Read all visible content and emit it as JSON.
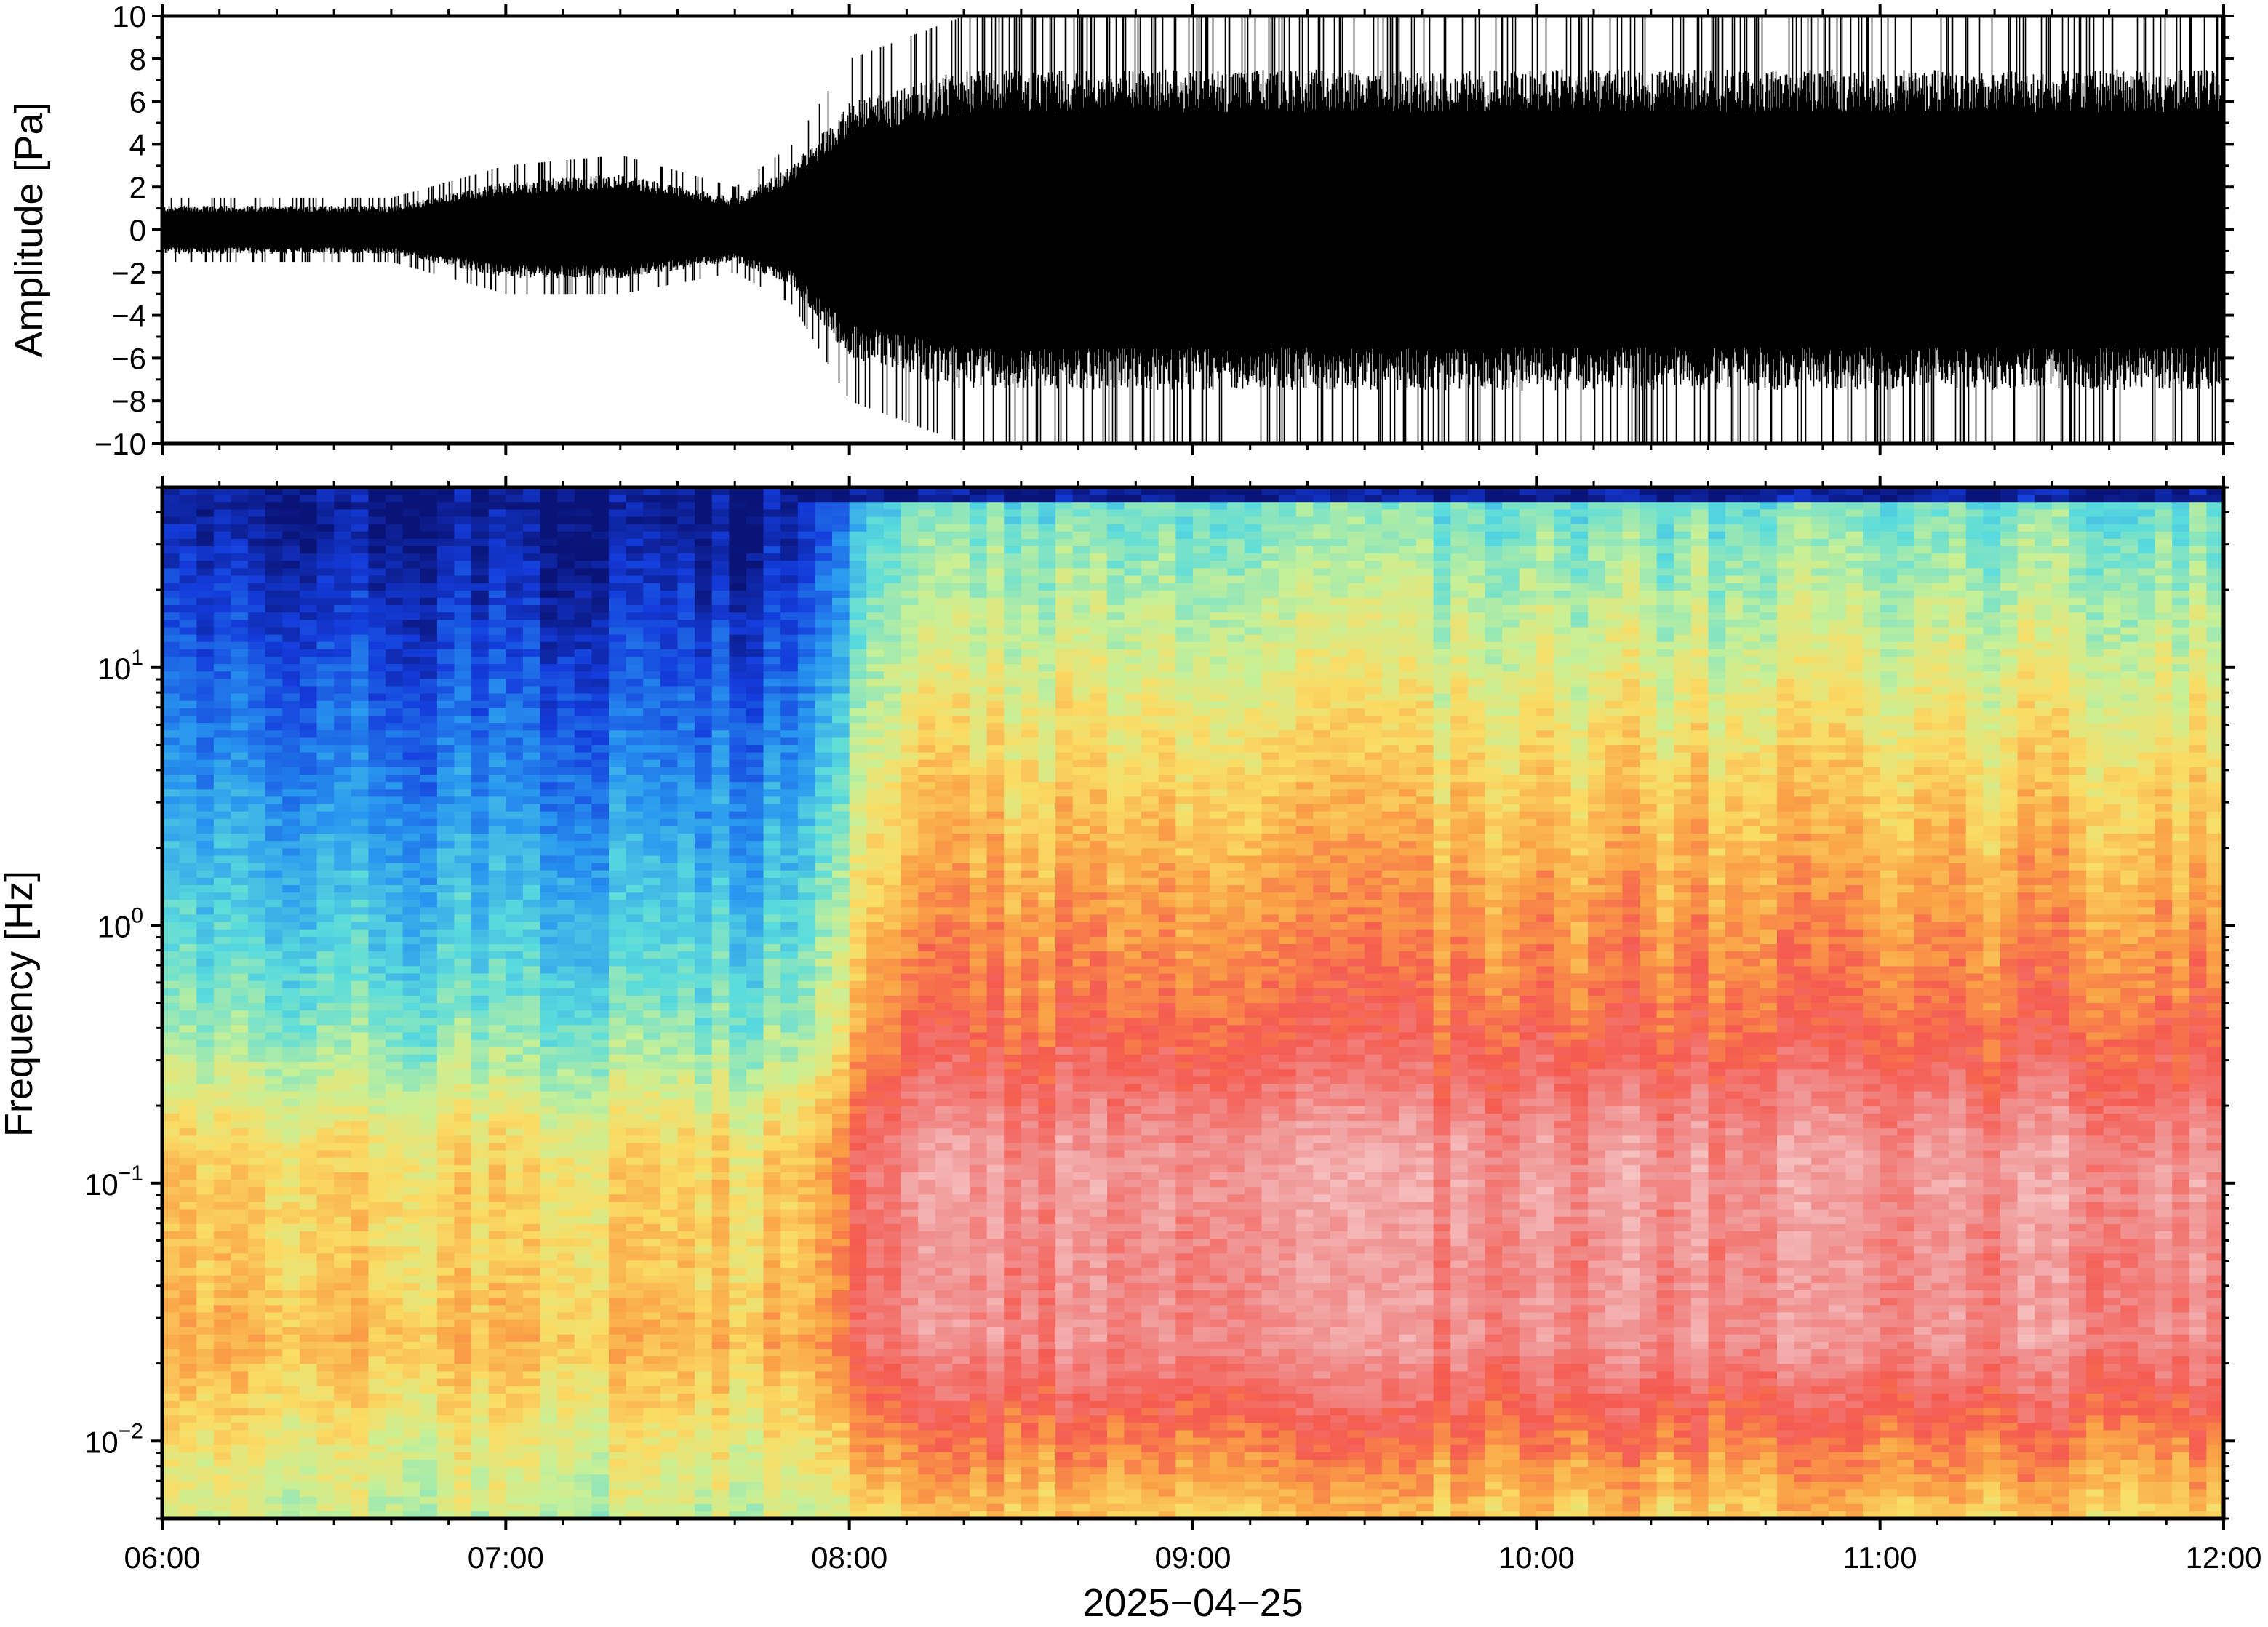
{
  "chart_data": [
    {
      "type": "line",
      "title": "",
      "xlabel": "",
      "ylabel": "Amplitude [Pa]",
      "xlim": [
        "06:00",
        "12:00"
      ],
      "ylim": [
        -10,
        10
      ],
      "ytick_values": [
        -10,
        -8,
        -6,
        -4,
        -2,
        0,
        2,
        4,
        6,
        8,
        10
      ],
      "ytick_labels": [
        "−10",
        "−8",
        "−6",
        "−4",
        "−2",
        "0",
        "2",
        "4",
        "6",
        "8",
        "10"
      ],
      "grid": false,
      "legend": "none",
      "color": "#000000",
      "series": [
        {
          "x": [
            "06:00",
            "06:20",
            "06:40",
            "07:00",
            "07:20",
            "07:40",
            "07:50",
            "08:00",
            "08:20",
            "08:40",
            "09:00",
            "09:20",
            "09:40",
            "10:00",
            "10:20",
            "10:40",
            "11:00",
            "11:20",
            "11:40",
            "12:00"
          ],
          "envelope_max": [
            1.5,
            1.5,
            1.5,
            3.0,
            3.5,
            2.0,
            4.0,
            8.0,
            10,
            10,
            10,
            10,
            10,
            10,
            10,
            10,
            10,
            10,
            10,
            10
          ],
          "envelope_min": [
            -1.5,
            -1.5,
            -1.5,
            -3.0,
            -3.0,
            -2.0,
            -3.5,
            -8.0,
            -10,
            -10,
            -10,
            -10,
            -10,
            -10,
            -10,
            -10,
            -10,
            -10,
            -10,
            -10
          ]
        }
      ]
    },
    {
      "type": "heatmap",
      "title": "",
      "xlabel": "2025−04−25",
      "ylabel": "Frequency [Hz]",
      "xlim": [
        "06:00",
        "12:00"
      ],
      "xtick_labels": [
        "06:00",
        "07:00",
        "08:00",
        "09:00",
        "10:00",
        "11:00",
        "12:00"
      ],
      "ylim": [
        0.005,
        50
      ],
      "yscale": "log",
      "ytick_values": [
        0.01,
        0.1,
        1,
        10
      ],
      "ytick_labels": [
        {
          "base": "10",
          "exp": "−2"
        },
        {
          "base": "10",
          "exp": "−1"
        },
        {
          "base": "10",
          "exp": "0"
        },
        {
          "base": "10",
          "exp": "1"
        }
      ],
      "colormap": "spectral (blue low, red high, pink/white highest)",
      "columns_per_hour": 10
    }
  ]
}
